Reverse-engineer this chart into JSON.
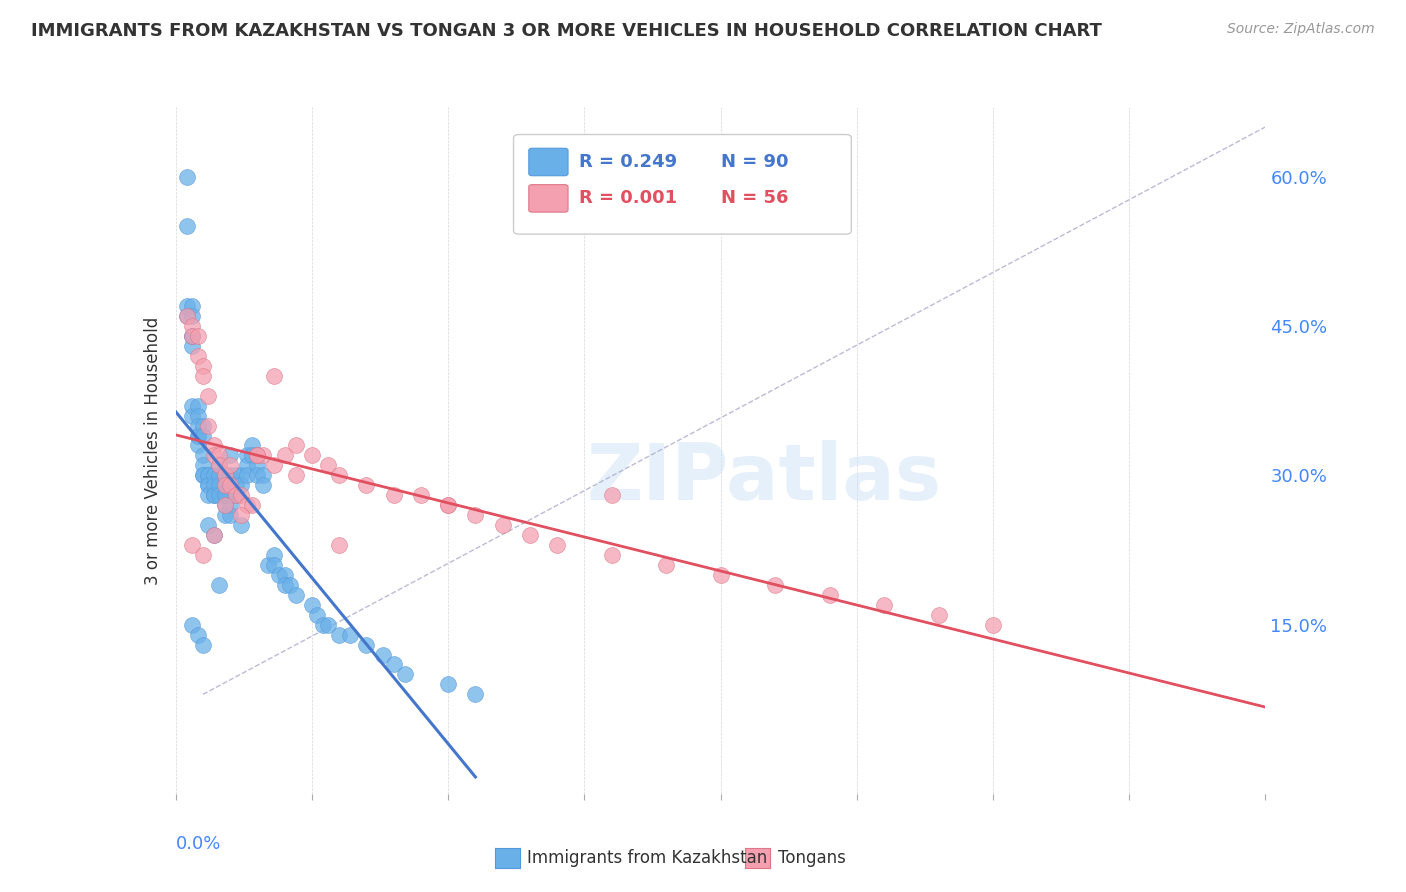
{
  "title": "IMMIGRANTS FROM KAZAKHSTAN VS TONGAN 3 OR MORE VEHICLES IN HOUSEHOLD CORRELATION CHART",
  "source": "Source: ZipAtlas.com",
  "ylabel": "3 or more Vehicles in Household",
  "right_yticks": [
    0.15,
    0.3,
    0.45,
    0.6
  ],
  "right_yticklabels": [
    "15.0%",
    "30.0%",
    "45.0%",
    "60.0%"
  ],
  "legend_blue_R": "R = 0.249",
  "legend_blue_N": "N = 90",
  "legend_pink_R": "R = 0.001",
  "legend_pink_N": "N = 56",
  "blue_color": "#6ab0e8",
  "pink_color": "#f4a0b0",
  "blue_line_color": "#4477cc",
  "pink_line_color": "#e05060",
  "watermark": "ZIPatlas",
  "xlim": [
    0.0,
    0.2
  ],
  "ylim": [
    -0.02,
    0.67
  ],
  "blue_x": [
    0.002,
    0.002,
    0.002,
    0.003,
    0.003,
    0.003,
    0.003,
    0.003,
    0.003,
    0.003,
    0.004,
    0.004,
    0.004,
    0.004,
    0.004,
    0.004,
    0.005,
    0.005,
    0.005,
    0.005,
    0.005,
    0.005,
    0.006,
    0.006,
    0.006,
    0.006,
    0.006,
    0.007,
    0.007,
    0.007,
    0.007,
    0.008,
    0.008,
    0.008,
    0.008,
    0.009,
    0.009,
    0.009,
    0.009,
    0.009,
    0.01,
    0.01,
    0.01,
    0.01,
    0.01,
    0.011,
    0.011,
    0.011,
    0.012,
    0.012,
    0.013,
    0.013,
    0.013,
    0.014,
    0.014,
    0.015,
    0.015,
    0.015,
    0.016,
    0.016,
    0.017,
    0.018,
    0.018,
    0.019,
    0.02,
    0.02,
    0.021,
    0.022,
    0.025,
    0.026,
    0.027,
    0.028,
    0.03,
    0.032,
    0.035,
    0.038,
    0.04,
    0.042,
    0.05,
    0.055,
    0.002,
    0.003,
    0.004,
    0.005,
    0.006,
    0.007,
    0.008,
    0.009,
    0.01,
    0.012
  ],
  "blue_y": [
    0.55,
    0.47,
    0.46,
    0.47,
    0.46,
    0.44,
    0.43,
    0.44,
    0.37,
    0.36,
    0.37,
    0.36,
    0.35,
    0.34,
    0.34,
    0.33,
    0.35,
    0.34,
    0.32,
    0.31,
    0.3,
    0.3,
    0.3,
    0.3,
    0.29,
    0.29,
    0.28,
    0.3,
    0.29,
    0.28,
    0.28,
    0.31,
    0.3,
    0.29,
    0.28,
    0.3,
    0.29,
    0.28,
    0.27,
    0.26,
    0.3,
    0.29,
    0.28,
    0.27,
    0.26,
    0.3,
    0.29,
    0.28,
    0.3,
    0.29,
    0.32,
    0.31,
    0.3,
    0.33,
    0.32,
    0.32,
    0.31,
    0.3,
    0.3,
    0.29,
    0.21,
    0.22,
    0.21,
    0.2,
    0.2,
    0.19,
    0.19,
    0.18,
    0.17,
    0.16,
    0.15,
    0.15,
    0.14,
    0.14,
    0.13,
    0.12,
    0.11,
    0.1,
    0.09,
    0.08,
    0.6,
    0.15,
    0.14,
    0.13,
    0.25,
    0.24,
    0.19,
    0.28,
    0.32,
    0.25
  ],
  "pink_x": [
    0.002,
    0.003,
    0.003,
    0.004,
    0.004,
    0.005,
    0.005,
    0.006,
    0.006,
    0.007,
    0.007,
    0.008,
    0.008,
    0.009,
    0.009,
    0.01,
    0.01,
    0.011,
    0.012,
    0.013,
    0.014,
    0.015,
    0.016,
    0.018,
    0.02,
    0.022,
    0.025,
    0.028,
    0.03,
    0.035,
    0.04,
    0.045,
    0.05,
    0.055,
    0.06,
    0.065,
    0.07,
    0.08,
    0.09,
    0.1,
    0.11,
    0.12,
    0.13,
    0.14,
    0.15,
    0.003,
    0.005,
    0.007,
    0.009,
    0.012,
    0.015,
    0.018,
    0.022,
    0.03,
    0.05,
    0.08
  ],
  "pink_y": [
    0.46,
    0.45,
    0.44,
    0.44,
    0.42,
    0.41,
    0.4,
    0.38,
    0.35,
    0.33,
    0.32,
    0.32,
    0.31,
    0.3,
    0.29,
    0.31,
    0.29,
    0.28,
    0.28,
    0.27,
    0.27,
    0.32,
    0.32,
    0.4,
    0.32,
    0.33,
    0.32,
    0.31,
    0.3,
    0.29,
    0.28,
    0.28,
    0.27,
    0.26,
    0.25,
    0.24,
    0.23,
    0.22,
    0.21,
    0.2,
    0.19,
    0.18,
    0.17,
    0.16,
    0.15,
    0.23,
    0.22,
    0.24,
    0.27,
    0.26,
    0.32,
    0.31,
    0.3,
    0.23,
    0.27,
    0.28
  ]
}
